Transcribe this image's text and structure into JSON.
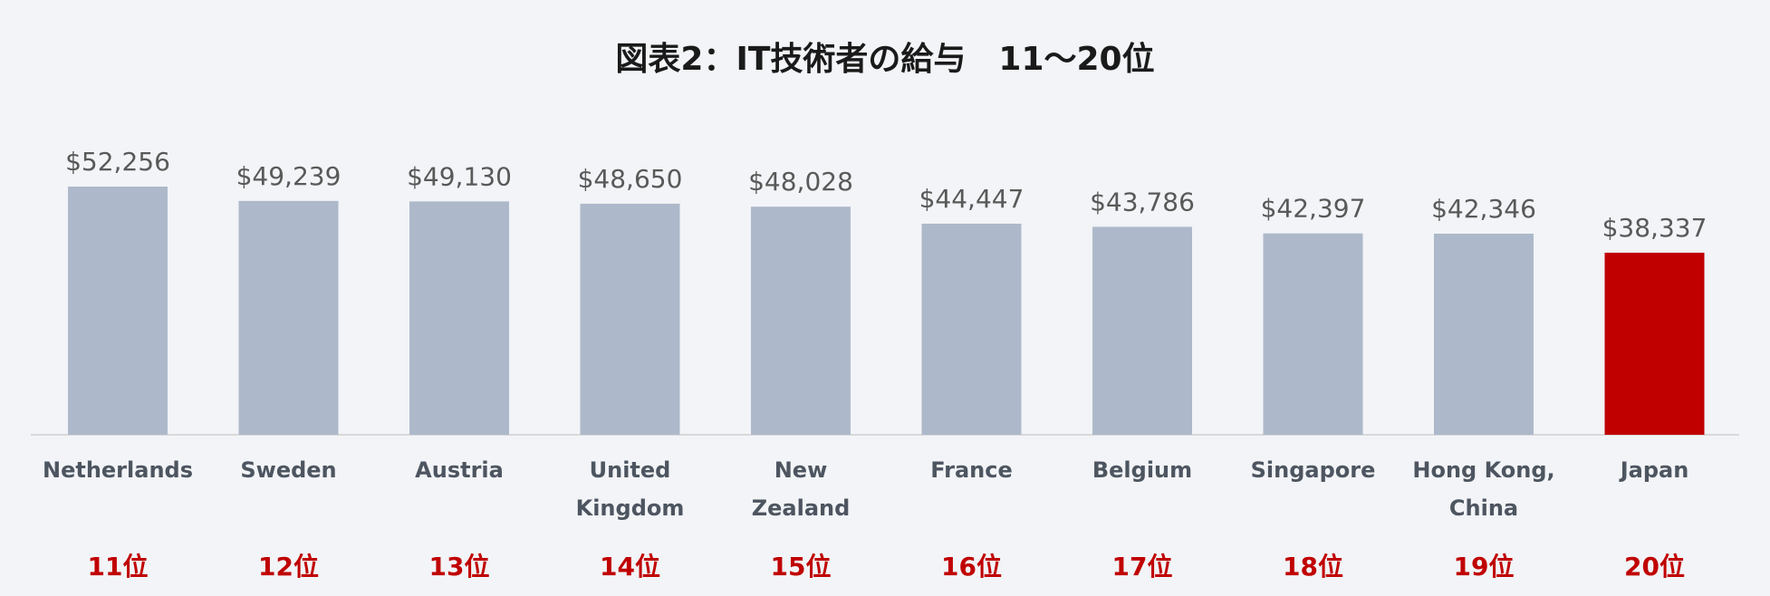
{
  "chart_data": {
    "type": "bar",
    "title": "図表2：IT技術者の給与　11～20位",
    "categories": [
      "Netherlands",
      "Sweden",
      "Austria",
      "United\nKingdom",
      "New\nZealand",
      "France",
      "Belgium",
      "Singapore",
      "Hong Kong,\nChina",
      "Japan"
    ],
    "values": [
      52256,
      49239,
      49130,
      48650,
      48028,
      44447,
      43786,
      42397,
      42346,
      38337
    ],
    "value_labels": [
      "$52,256",
      "$49,239",
      "$49,130",
      "$48,650",
      "$48,028",
      "$44,447",
      "$43,786",
      "$42,397",
      "$42,346",
      "$38,337"
    ],
    "ranks": [
      "11位",
      "12位",
      "13位",
      "14位",
      "15位",
      "16位",
      "17位",
      "18位",
      "19位",
      "20位"
    ],
    "colors": [
      "#adb9ca",
      "#adb9ca",
      "#adb9ca",
      "#adb9ca",
      "#adb9ca",
      "#adb9ca",
      "#adb9ca",
      "#adb9ca",
      "#adb9ca",
      "#c00000"
    ]
  }
}
